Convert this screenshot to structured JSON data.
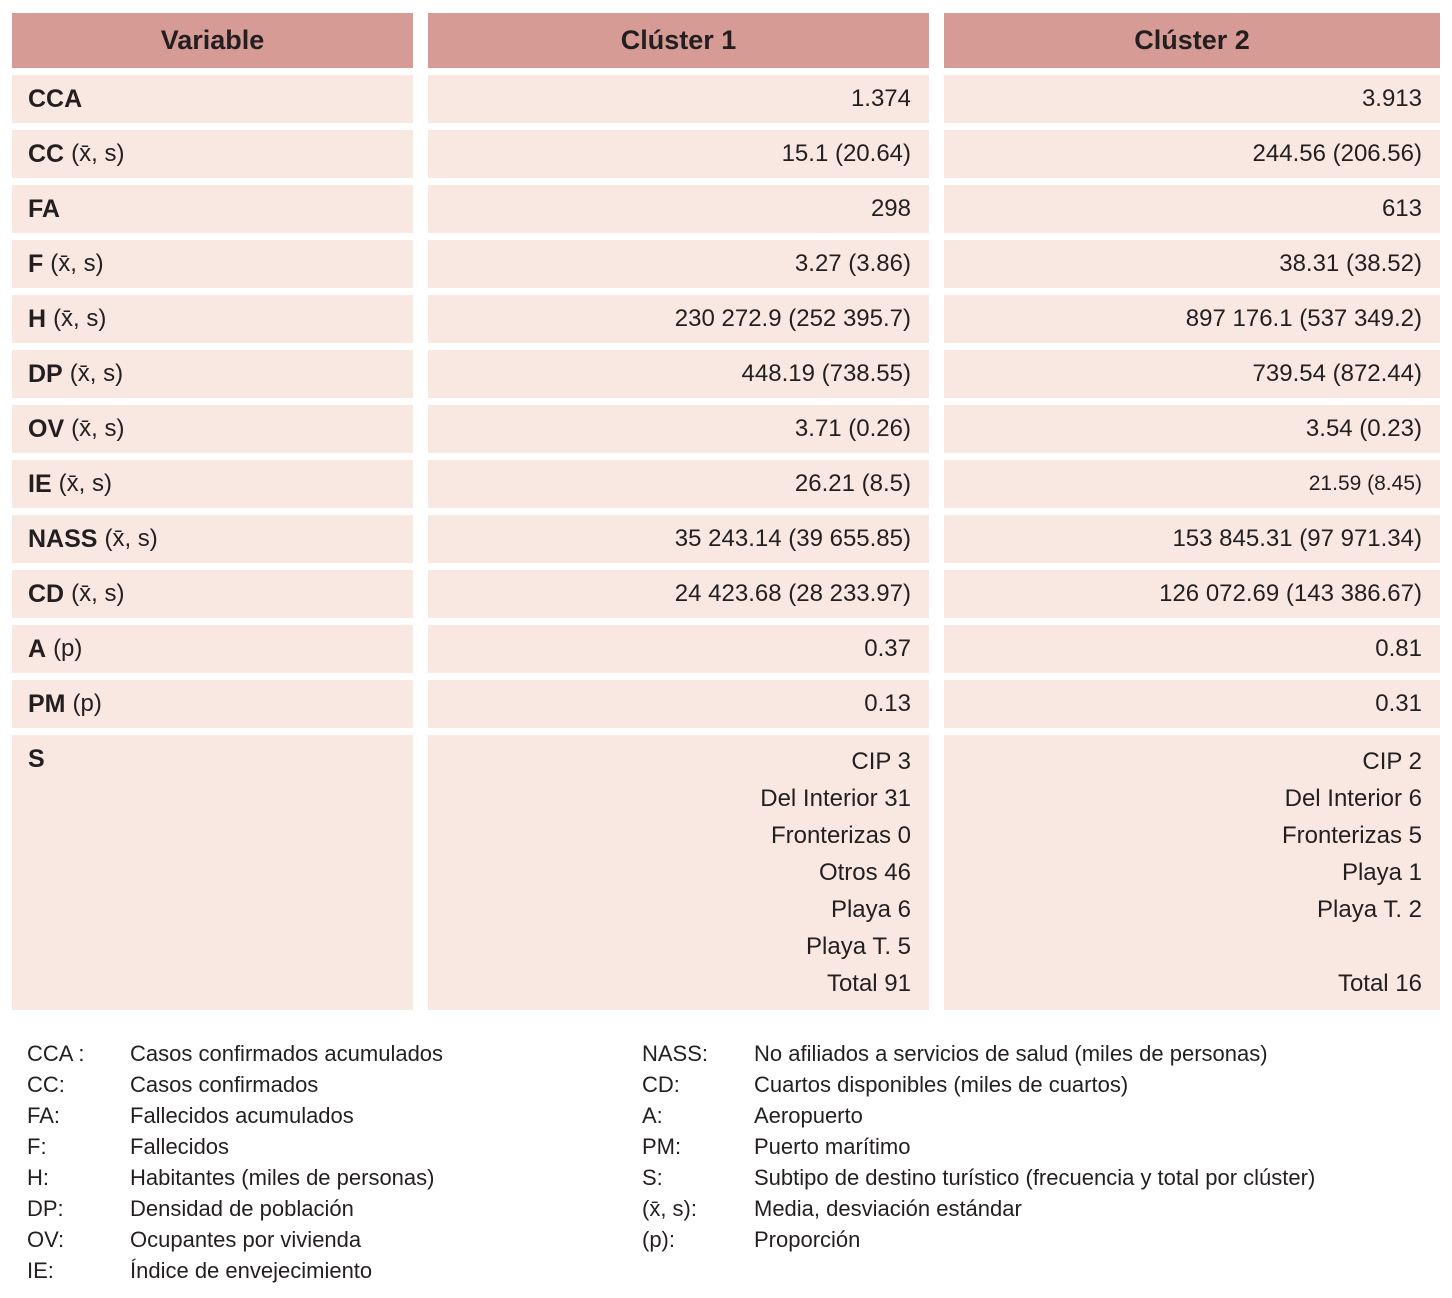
{
  "colors": {
    "header_bg": "#d69b95",
    "row_bg": "#f9e7e2",
    "text": "#231f20"
  },
  "table": {
    "headers": [
      "Variable",
      "Clúster 1",
      "Clúster 2"
    ],
    "rows": [
      {
        "abbr": "CCA",
        "suffix": "",
        "c1": "1.374",
        "c2": "3.913"
      },
      {
        "abbr": "CC",
        "suffix": "(x̄, s)",
        "c1": "15.1 (20.64)",
        "c2": "244.56 (206.56)"
      },
      {
        "abbr": "FA",
        "suffix": "",
        "c1": "298",
        "c2": "613"
      },
      {
        "abbr": "F",
        "suffix": "(x̄, s)",
        "c1": "3.27 (3.86)",
        "c2": "38.31 (38.52)"
      },
      {
        "abbr": "H",
        "suffix": "(x̄, s)",
        "c1": "230 272.9 (252 395.7)",
        "c2": "897 176.1 (537 349.2)"
      },
      {
        "abbr": "DP",
        "suffix": "(x̄, s)",
        "c1": "448.19 (738.55)",
        "c2": "739.54 (872.44)"
      },
      {
        "abbr": "OV",
        "suffix": "(x̄, s)",
        "c1": "3.71 (0.26)",
        "c2": "3.54 (0.23)"
      },
      {
        "abbr": "IE",
        "suffix": "(x̄, s)",
        "c1": "26.21 (8.5)",
        "c2": "21.59 (8.45)",
        "c2_small": true
      },
      {
        "abbr": "NASS",
        "suffix": "(x̄, s)",
        "c1": "35 243.14 (39 655.85)",
        "c2": "153 845.31 (97 971.34)"
      },
      {
        "abbr": "CD",
        "suffix": "(x̄, s)",
        "c1": "24 423.68 (28 233.97)",
        "c2": "126 072.69 (143 386.67)"
      },
      {
        "abbr": "A",
        "suffix": "(p)",
        "c1": "0.37",
        "c2": "0.81"
      },
      {
        "abbr": "PM",
        "suffix": "(p)",
        "c1": "0.13",
        "c2": "0.31"
      }
    ],
    "s_row": {
      "abbr": "S",
      "c1_lines": [
        "CIP 3",
        "Del Interior 31",
        "Fronterizas 0",
        "Otros 46",
        "Playa 6",
        "Playa T. 5",
        "Total 91"
      ],
      "c2_lines": [
        "CIP 2",
        "Del Interior 6",
        "Fronterizas 5",
        "Playa 1",
        "Playa T. 2",
        "",
        "Total 16"
      ]
    }
  },
  "legend": {
    "left": [
      {
        "abbr": "CCA :",
        "desc": "Casos confirmados acumulados"
      },
      {
        "abbr": "CC:",
        "desc": "Casos confirmados"
      },
      {
        "abbr": "FA:",
        "desc": "Fallecidos acumulados"
      },
      {
        "abbr": "F:",
        "desc": "Fallecidos"
      },
      {
        "abbr": "H:",
        "desc": "Habitantes (miles de personas)"
      },
      {
        "abbr": "DP:",
        "desc": "Densidad de población"
      },
      {
        "abbr": "OV:",
        "desc": "Ocupantes por vivienda"
      },
      {
        "abbr": "IE:",
        "desc": "Índice de envejecimiento"
      }
    ],
    "right": [
      {
        "abbr": "NASS:",
        "desc": "No afiliados a servicios de salud (miles de personas)"
      },
      {
        "abbr": "CD:",
        "desc": "Cuartos disponibles (miles de cuartos)"
      },
      {
        "abbr": "A:",
        "desc": "Aeropuerto"
      },
      {
        "abbr": "PM:",
        "desc": "Puerto marítimo"
      },
      {
        "abbr": "S:",
        "desc": "Subtipo de destino turístico (frecuencia y total por clúster)"
      },
      {
        "abbr": "(x̄, s):",
        "desc": "Media, desviación estándar"
      },
      {
        "abbr": "(p):",
        "desc": "Proporción"
      }
    ]
  }
}
